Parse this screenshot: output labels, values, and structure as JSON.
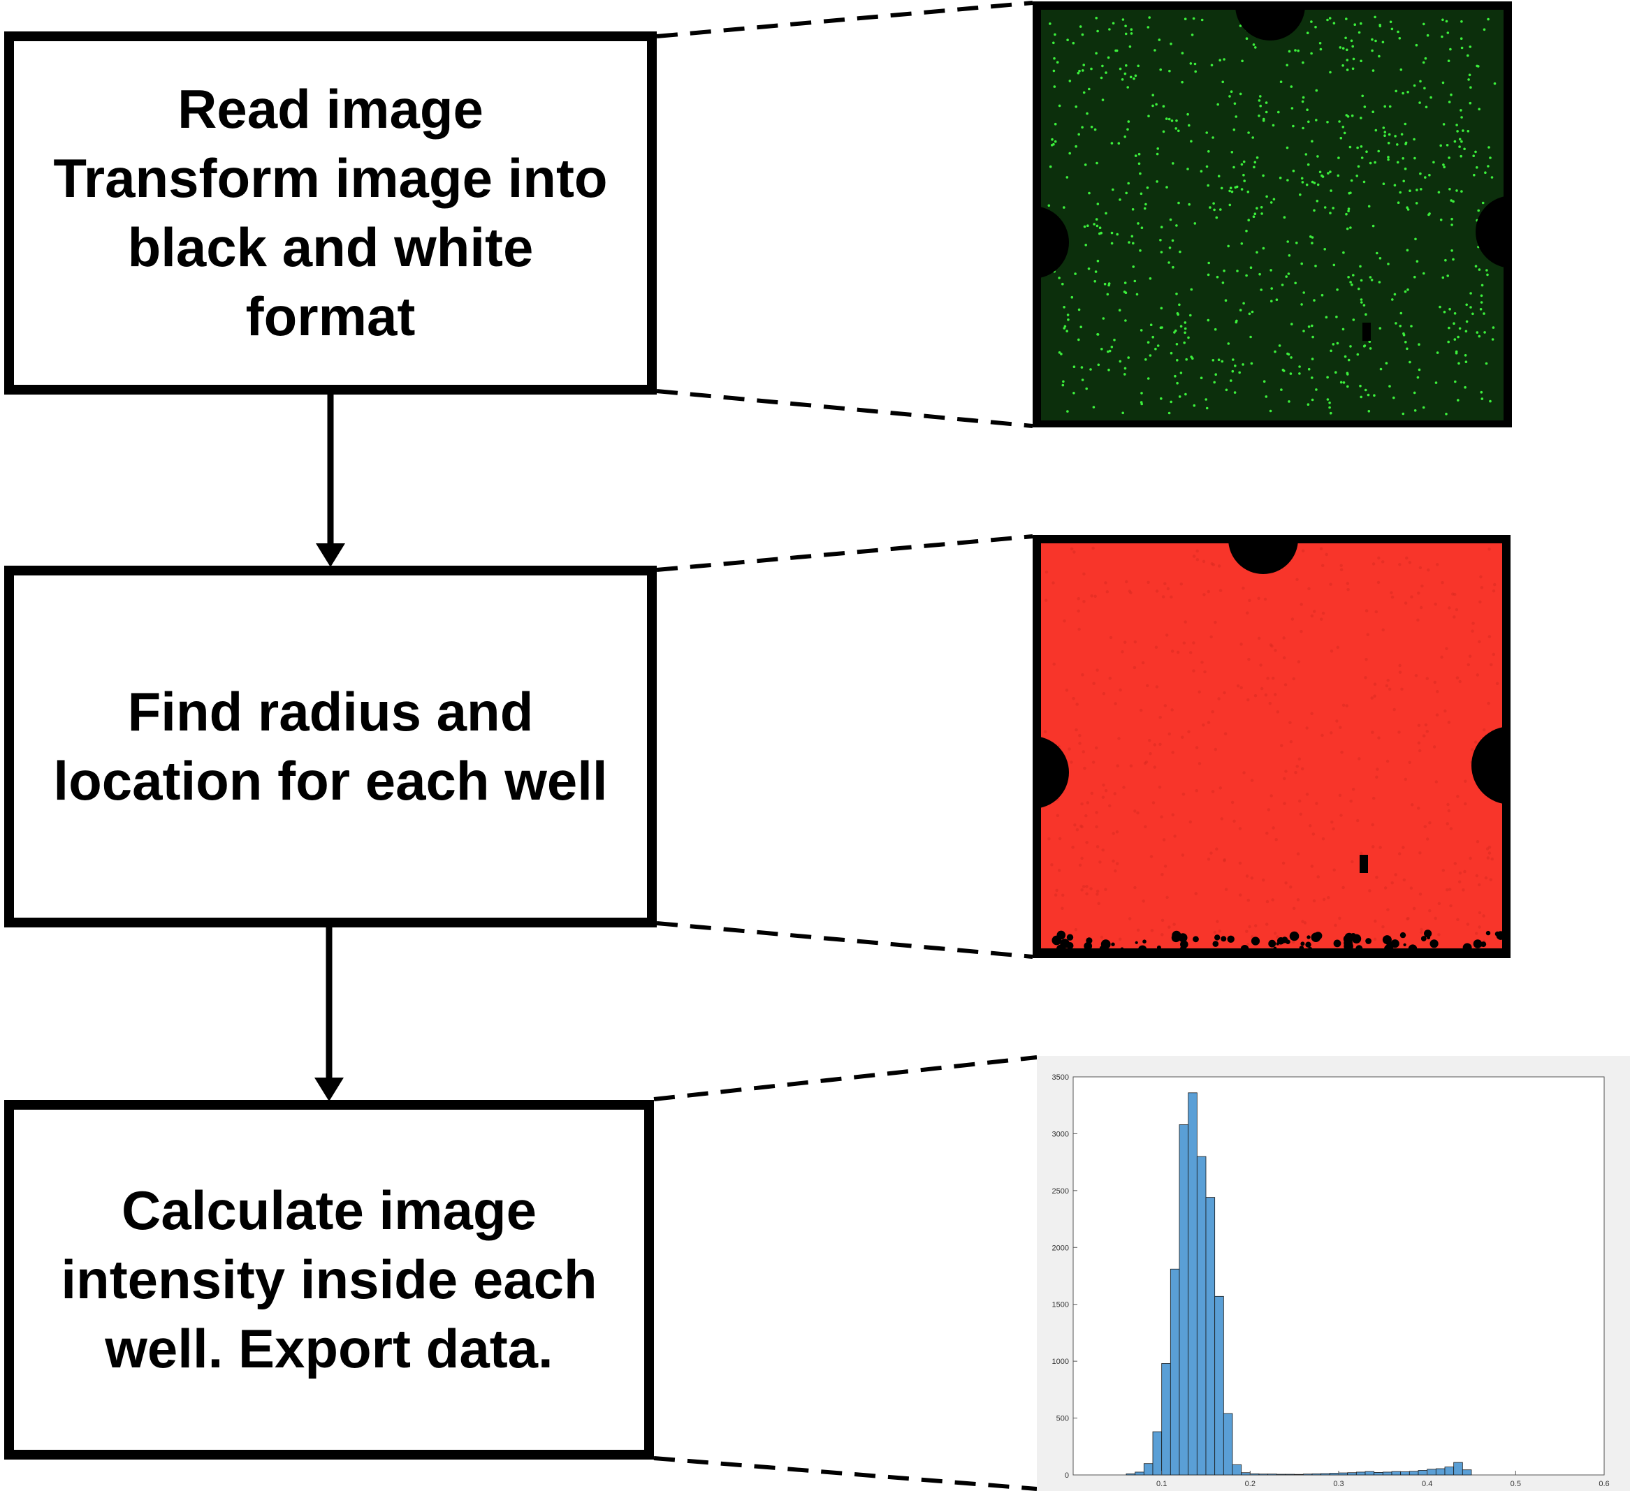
{
  "steps": [
    {
      "lines": [
        "Read image",
        "Transform image into",
        "black and white",
        "format"
      ]
    },
    {
      "lines": [
        "Find radius and",
        "location for each well"
      ]
    },
    {
      "lines": [
        "Calculate image",
        "intensity inside each",
        "well. Export data."
      ]
    }
  ],
  "panels": {
    "fluorescence": {
      "background": "#0c2f0c",
      "dot_color": "#3cf03c"
    },
    "mask": {
      "fill": "#f8352a",
      "background": "#000000"
    },
    "histogram": {
      "bar_color": "#5a9fd6",
      "background": "#f0f0f0"
    }
  },
  "chart_data": {
    "type": "bar",
    "title": "",
    "xlabel": "",
    "ylabel": "",
    "xlim": [
      0,
      0.6
    ],
    "ylim": [
      0,
      3500
    ],
    "xticks": [
      0.1,
      0.2,
      0.3,
      0.4,
      0.5,
      0.6
    ],
    "yticks": [
      0,
      500,
      1000,
      1500,
      2000,
      2500,
      3000,
      3500
    ],
    "x_tick_labels": [
      "0.1",
      "0.2",
      "0.3",
      "0.4",
      "0.5",
      "0.6"
    ],
    "y_tick_labels": [
      "0",
      "500",
      "1000",
      "1500",
      "2000",
      "2500",
      "3000",
      "3500"
    ],
    "bin_width": 0.01,
    "x_start": 0.06,
    "values": [
      10,
      25,
      100,
      380,
      980,
      1810,
      3080,
      3360,
      2800,
      2440,
      1570,
      540,
      90,
      20,
      10,
      8,
      8,
      6,
      6,
      5,
      8,
      10,
      12,
      15,
      18,
      20,
      25,
      30,
      22,
      25,
      30,
      28,
      32,
      40,
      50,
      55,
      70,
      110,
      45
    ],
    "grid": false
  }
}
